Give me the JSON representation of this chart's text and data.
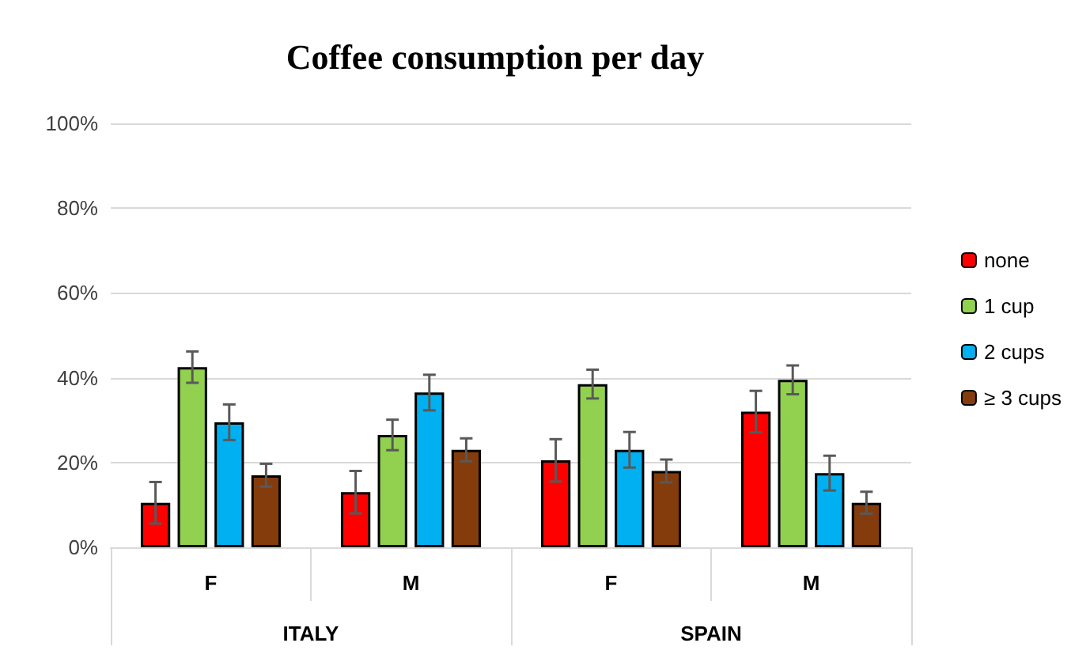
{
  "chart_data": {
    "type": "bar",
    "title": "Coffee consumption per day",
    "categories": [
      "F",
      "M",
      "F",
      "M"
    ],
    "annotations": [
      "ITALY",
      "SPAIN"
    ],
    "series": [
      {
        "name": "none",
        "color": "#ff0000",
        "values": [
          10.5,
          13,
          20.5,
          32
        ],
        "errors": [
          4.9,
          5,
          5,
          4.9
        ]
      },
      {
        "name": "1 cup",
        "color": "#92d050",
        "values": [
          42.5,
          26.5,
          38.5,
          39.5
        ],
        "errors": [
          3.7,
          3.6,
          3.4,
          3.4
        ]
      },
      {
        "name": "2 cups",
        "color": "#00b0f0",
        "values": [
          29.5,
          36.5,
          23,
          17.5
        ],
        "errors": [
          4.2,
          4.2,
          4.2,
          4.1
        ]
      },
      {
        "name": "≥ 3 cups",
        "color": "#843c0c",
        "values": [
          17,
          23,
          18,
          10.5
        ],
        "errors": [
          2.7,
          2.7,
          2.7,
          2.6
        ]
      }
    ],
    "ylim": [
      0,
      100
    ],
    "yticks": [
      {
        "value": 0,
        "label": "0%"
      },
      {
        "value": 20,
        "label": "20%"
      },
      {
        "value": 40,
        "label": "40%"
      },
      {
        "value": 60,
        "label": "60%"
      },
      {
        "value": 80,
        "label": "80%"
      },
      {
        "value": 100,
        "label": "100%"
      }
    ],
    "grid": "y",
    "legend": "right"
  }
}
